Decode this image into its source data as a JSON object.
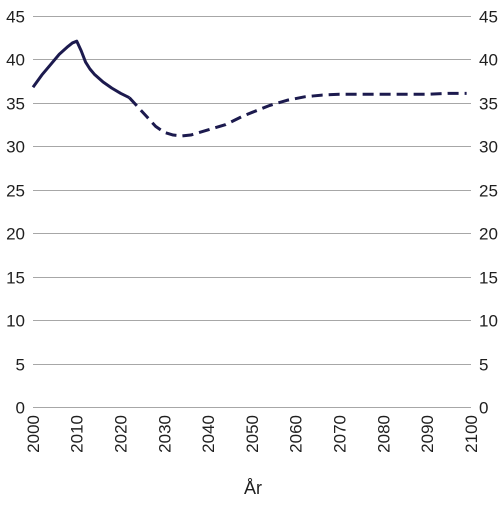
{
  "chart_data": {
    "type": "line",
    "title": "",
    "xlabel": "År",
    "ylabel": "",
    "xlim": [
      2000,
      2100
    ],
    "ylim": [
      0,
      45
    ],
    "x_ticks": [
      2000,
      2010,
      2020,
      2030,
      2040,
      2050,
      2060,
      2070,
      2080,
      2090,
      2100
    ],
    "y_ticks": [
      0,
      5,
      10,
      15,
      20,
      25,
      30,
      35,
      40,
      45
    ],
    "grid": "horizontal",
    "right_axis_labels": true,
    "legend": "none",
    "colors": {
      "series": "#1c1a4e",
      "grid": "#a7a7a7",
      "text": "#1f1f1f"
    },
    "series": [
      {
        "style": "solid",
        "x": [
          2000,
          2002,
          2004,
          2006,
          2008,
          2009,
          2010,
          2011,
          2012,
          2013,
          2014,
          2016,
          2018,
          2020,
          2022
        ],
        "y": [
          36.8,
          38.2,
          39.4,
          40.6,
          41.5,
          41.9,
          42.1,
          41.0,
          39.7,
          38.9,
          38.3,
          37.4,
          36.7,
          36.1,
          35.6
        ]
      },
      {
        "style": "dashed",
        "x": [
          2022,
          2024,
          2026,
          2028,
          2030,
          2032,
          2034,
          2036,
          2038,
          2040,
          2042,
          2044,
          2046,
          2048,
          2050,
          2052,
          2054,
          2056,
          2058,
          2060,
          2062,
          2064,
          2066,
          2068,
          2070,
          2075,
          2080,
          2085,
          2090,
          2095,
          2099
        ],
        "y": [
          35.6,
          34.5,
          33.4,
          32.3,
          31.6,
          31.3,
          31.2,
          31.3,
          31.6,
          31.9,
          32.2,
          32.5,
          33.0,
          33.5,
          33.9,
          34.3,
          34.7,
          35.0,
          35.3,
          35.5,
          35.7,
          35.8,
          35.9,
          35.95,
          36.0,
          36.0,
          36.0,
          36.0,
          36.0,
          36.1,
          36.1
        ]
      }
    ]
  }
}
